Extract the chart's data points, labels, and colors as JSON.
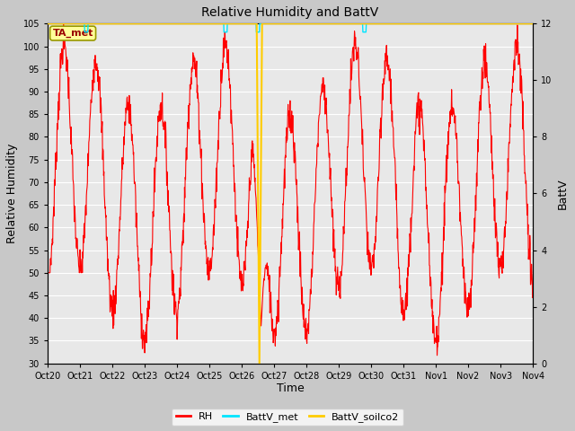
{
  "title": "Relative Humidity and BattV",
  "ylabel_left": "Relative Humidity",
  "ylabel_right": "BattV",
  "xlabel": "Time",
  "ylim_left": [
    30,
    105
  ],
  "ylim_right": [
    0,
    12
  ],
  "yticks_left": [
    30,
    35,
    40,
    45,
    50,
    55,
    60,
    65,
    70,
    75,
    80,
    85,
    90,
    95,
    100,
    105
  ],
  "yticks_right": [
    0,
    2,
    4,
    6,
    8,
    10,
    12
  ],
  "fig_bg_color": "#c8c8c8",
  "plot_bg_color": "#e8e8e8",
  "grid_color": "#ffffff",
  "rh_color": "#ff0000",
  "battv_met_color": "#00e5ff",
  "battv_soilco2_color": "#ffcc00",
  "annotation_text": "TA_met",
  "annotation_fg": "#990000",
  "annotation_bg": "#ffff99",
  "annotation_border": "#999900",
  "x_tick_labels": [
    "Oct 20",
    "Oct 21",
    "Oct 22",
    "Oct 23",
    "Oct 24",
    "Oct 25",
    "Oct 26",
    "Oct 27",
    "Oct 28",
    "Oct 29",
    "Oct 30",
    "Oct 31",
    "Nov 1",
    "Nov 2",
    "Nov 3",
    "Nov 4"
  ],
  "n_points": 1440,
  "rh_seed": 7
}
